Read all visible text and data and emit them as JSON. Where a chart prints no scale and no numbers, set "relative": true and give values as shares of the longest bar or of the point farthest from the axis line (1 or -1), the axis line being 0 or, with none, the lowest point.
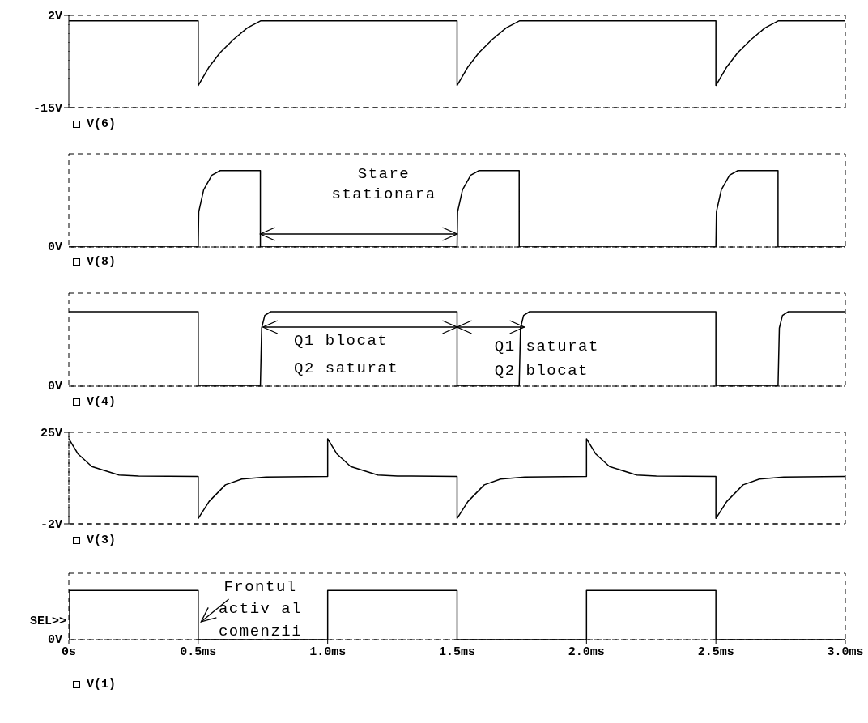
{
  "chart_data": [
    {
      "type": "line",
      "x": [
        0,
        0.5,
        0.5,
        0.542,
        0.584,
        0.637,
        0.69,
        0.742,
        1.5,
        1.5,
        1.542,
        1.584,
        1.637,
        1.69,
        1.742,
        2.5,
        2.5,
        2.542,
        2.584,
        2.637,
        2.69,
        2.742,
        3
      ],
      "series": [
        {
          "name": "V(6)",
          "color": "#000000",
          "values": [
            1,
            1,
            -10.9,
            -7.5,
            -4.9,
            -2.4,
            -0.3,
            1,
            1,
            -10.9,
            -7.5,
            -4.9,
            -2.4,
            -0.3,
            1,
            1,
            -10.9,
            -7.5,
            -4.9,
            -2.4,
            -0.3,
            1,
            1
          ]
        }
      ],
      "ylim": [
        -15,
        2
      ],
      "yticks": [
        {
          "value": 2,
          "label": "2V"
        },
        {
          "value": -15,
          "label": "-15V"
        }
      ],
      "tick_labels": "y",
      "legend": "bottom left",
      "xlim": [
        0,
        3
      ]
    },
    {
      "type": "line",
      "x": [
        0,
        0.5,
        0.502,
        0.521,
        0.553,
        0.585,
        0.74,
        0.74,
        1.5,
        1.502,
        1.521,
        1.553,
        1.585,
        1.74,
        1.74,
        2.5,
        2.502,
        2.521,
        2.553,
        2.585,
        2.74,
        2.74,
        3
      ],
      "series": [
        {
          "name": "V(8)",
          "color": "#000000",
          "values": [
            0,
            0,
            0.46,
            0.75,
            0.94,
            1,
            1,
            0,
            0,
            0.46,
            0.75,
            0.94,
            1,
            1,
            0,
            0,
            0.46,
            0.75,
            0.94,
            1,
            1,
            0,
            0
          ]
        }
      ],
      "relative": true,
      "xlim": [
        0,
        3
      ],
      "tick_labels": false,
      "legend": "bottom left",
      "annotations": [
        "0V",
        "Stare\nstationara"
      ]
    },
    {
      "type": "line",
      "x": [
        0,
        0.5,
        0.5,
        0.74,
        0.745,
        0.757,
        0.78,
        1.5,
        1.5,
        1.74,
        1.745,
        1.757,
        1.78,
        2.5,
        2.5,
        2.74,
        2.745,
        2.757,
        2.78,
        3
      ],
      "series": [
        {
          "name": "V(4)",
          "color": "#000000",
          "values": [
            1,
            1,
            0,
            0,
            0.78,
            0.95,
            1,
            1,
            0,
            0,
            0.78,
            0.95,
            1,
            1,
            0,
            0,
            0.78,
            0.95,
            1,
            1
          ]
        }
      ],
      "relative": true,
      "xlim": [
        0,
        3
      ],
      "tick_labels": false,
      "legend": "bottom left",
      "annotations": [
        "0V",
        "Q1 blocat\nQ2 saturat",
        "Q1 saturat\nQ2 blocat"
      ]
    },
    {
      "type": "line",
      "x": [
        0,
        0.036,
        0.089,
        0.194,
        0.27,
        0.5,
        0.5,
        0.542,
        0.605,
        0.668,
        0.762,
        1,
        1,
        1.036,
        1.089,
        1.194,
        1.27,
        1.5,
        1.5,
        1.542,
        1.605,
        1.668,
        1.762,
        2,
        2,
        2.036,
        2.089,
        2.194,
        2.27,
        2.5,
        2.5,
        2.542,
        2.605,
        2.668,
        2.762,
        3
      ],
      "series": [
        {
          "name": "V(3)",
          "color": "#000000",
          "values": [
            23.1,
            18.6,
            14.9,
            12.4,
            12.1,
            12,
            -0.4,
            4.6,
            9.5,
            11.2,
            11.8,
            12,
            23.1,
            18.6,
            14.9,
            12.4,
            12.1,
            12,
            -0.4,
            4.6,
            9.5,
            11.2,
            11.8,
            12,
            23.1,
            18.6,
            14.9,
            12.4,
            12.1,
            12,
            -0.4,
            4.6,
            9.5,
            11.2,
            11.8,
            12
          ]
        }
      ],
      "xlim": [
        0,
        3
      ],
      "ylim": [
        -2,
        25
      ],
      "yticks": [
        {
          "value": 25,
          "label": "25V"
        },
        {
          "value": -2,
          "label": "-2V"
        }
      ],
      "tick_labels": "y",
      "legend": "bottom left"
    },
    {
      "type": "line",
      "x": [
        0,
        0,
        0.5,
        0.5,
        1,
        1,
        1.5,
        1.5,
        2,
        2,
        2.5,
        2.5,
        3
      ],
      "series": [
        {
          "name": "V(1)",
          "color": "#000000",
          "values": [
            0,
            1,
            1,
            0,
            0,
            1,
            1,
            0,
            0,
            1,
            1,
            0,
            0
          ]
        }
      ],
      "relative": true,
      "xlim": [
        0,
        3
      ],
      "xticks": [
        {
          "value": 0,
          "label": "0s"
        },
        {
          "value": 0.5,
          "label": "0.5ms"
        },
        {
          "value": 1,
          "label": "1.0ms"
        },
        {
          "value": 1.5,
          "label": "1.5ms"
        },
        {
          "value": 2,
          "label": "2.0ms"
        },
        {
          "value": 2.5,
          "label": "2.5ms"
        },
        {
          "value": 3,
          "label": "3.0ms"
        }
      ],
      "tick_labels": "x",
      "legend": "bottom left",
      "annotations": [
        "0V",
        "Frontul\nactiv al\ncomenzii",
        "SEL>>"
      ]
    }
  ]
}
